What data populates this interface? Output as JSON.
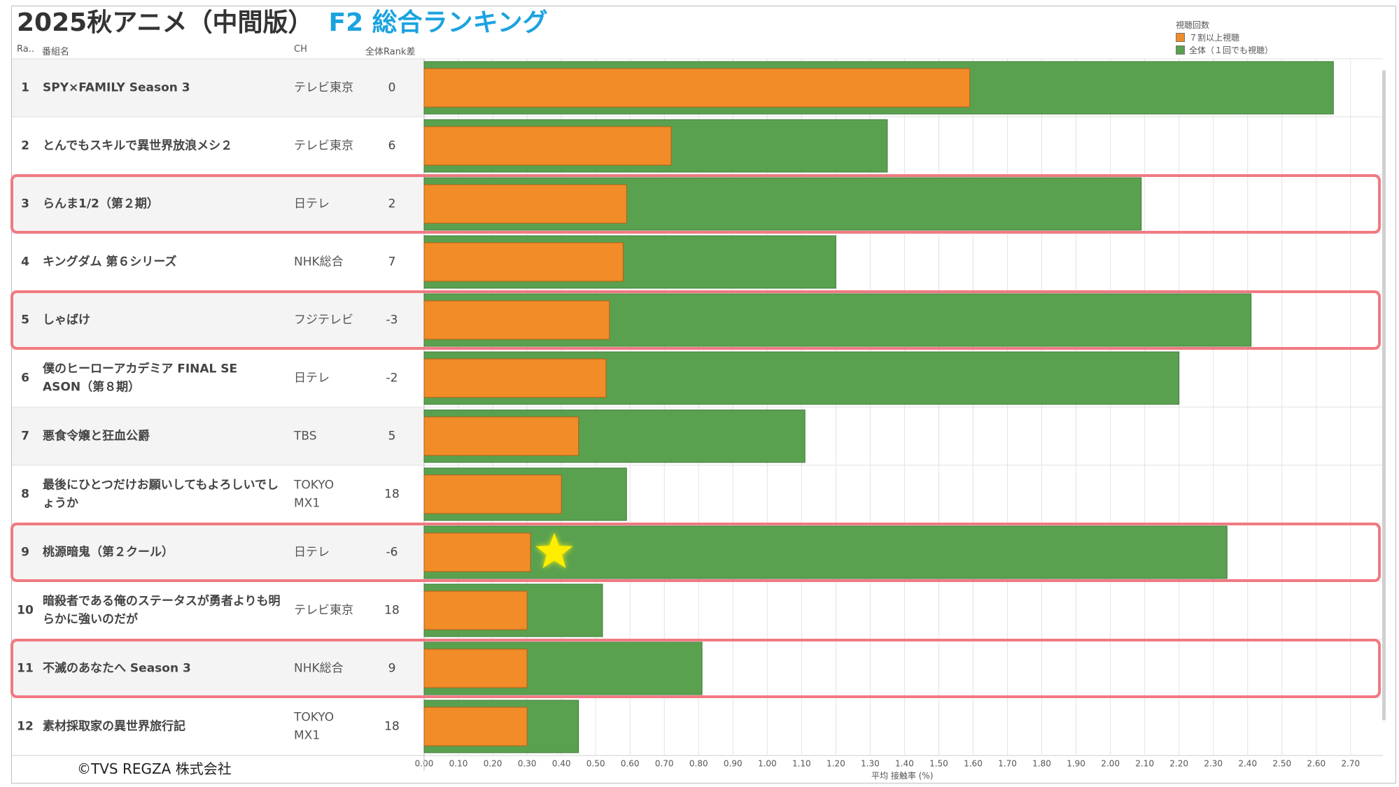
{
  "title": "2025秋アニメ（中間版）",
  "subtitle": "F2 総合ランキング",
  "header": {
    "rank": "Ra..",
    "program": "番組名",
    "ch": "CH",
    "rankdiff": "全体Rank差"
  },
  "legend": {
    "title": "視聴回数",
    "items": [
      {
        "label": "７割以上視聴",
        "color": "#f28c28"
      },
      {
        "label": "全体（１回でも視聴）",
        "color": "#59a14f"
      }
    ]
  },
  "copyright": "©TVS REGZA 株式会社",
  "colors": {
    "orange": "#f28c28",
    "green": "#59a14f",
    "highlight": "#f07a82",
    "star": "#ffee00"
  },
  "chart_data": {
    "type": "bar",
    "orientation": "horizontal",
    "xlabel": "平均 接触率 (%)",
    "xlim": [
      0,
      2.8
    ],
    "xticks": [
      "0.00",
      "0.10",
      "0.20",
      "0.30",
      "0.40",
      "0.50",
      "0.60",
      "0.70",
      "0.80",
      "0.90",
      "1.00",
      "1.10",
      "1.20",
      "1.30",
      "1.40",
      "1.50",
      "1.60",
      "1.70",
      "1.80",
      "1.90",
      "2.00",
      "2.10",
      "2.20",
      "2.30",
      "2.40",
      "2.50",
      "2.60",
      "2.70"
    ],
    "grid": true,
    "legend_position": "top-right",
    "highlighted_ranks": [
      3,
      5,
      9,
      11
    ],
    "star_rank": 9,
    "rows": [
      {
        "rank": "1",
        "program": [
          "SPY×FAMILY Season 3"
        ],
        "ch": [
          "テレビ東京"
        ],
        "rankdiff": "0",
        "over70": 1.59,
        "total": 2.65
      },
      {
        "rank": "2",
        "program": [
          "とんでもスキルで異世界放浪メシ２"
        ],
        "ch": [
          "テレビ東京"
        ],
        "rankdiff": "6",
        "over70": 0.72,
        "total": 1.35
      },
      {
        "rank": "3",
        "program": [
          "らんま1/2（第２期）"
        ],
        "ch": [
          "日テレ"
        ],
        "rankdiff": "2",
        "over70": 0.59,
        "total": 2.09
      },
      {
        "rank": "4",
        "program": [
          "キングダム 第６シリーズ"
        ],
        "ch": [
          "NHK総合"
        ],
        "rankdiff": "7",
        "over70": 0.58,
        "total": 1.2
      },
      {
        "rank": "5",
        "program": [
          "しゃばけ"
        ],
        "ch": [
          "フジテレビ"
        ],
        "rankdiff": "-3",
        "over70": 0.54,
        "total": 2.41
      },
      {
        "rank": "6",
        "program": [
          "僕のヒーローアカデミア FINAL SE",
          "ASON（第８期）"
        ],
        "ch": [
          "日テレ"
        ],
        "rankdiff": "-2",
        "over70": 0.53,
        "total": 2.2
      },
      {
        "rank": "7",
        "program": [
          "悪食令嬢と狂血公爵"
        ],
        "ch": [
          "TBS"
        ],
        "rankdiff": "5",
        "over70": 0.45,
        "total": 1.11
      },
      {
        "rank": "8",
        "program": [
          "最後にひとつだけお願いしてもよろしいでし",
          "ょうか"
        ],
        "ch": [
          "TOKYO",
          "MX1"
        ],
        "rankdiff": "18",
        "over70": 0.4,
        "total": 0.59
      },
      {
        "rank": "9",
        "program": [
          "桃源暗鬼（第２クール）"
        ],
        "ch": [
          "日テレ"
        ],
        "rankdiff": "-6",
        "over70": 0.31,
        "total": 2.34
      },
      {
        "rank": "10",
        "program": [
          "暗殺者である俺のステータスが勇者よりも明",
          "らかに強いのだが"
        ],
        "ch": [
          "テレビ東京"
        ],
        "rankdiff": "18",
        "over70": 0.3,
        "total": 0.52
      },
      {
        "rank": "11",
        "program": [
          "不滅のあなたへ Season 3"
        ],
        "ch": [
          "NHK総合"
        ],
        "rankdiff": "9",
        "over70": 0.3,
        "total": 0.81
      },
      {
        "rank": "12",
        "program": [
          "素材採取家の異世界旅行記"
        ],
        "ch": [
          "TOKYO",
          "MX1"
        ],
        "rankdiff": "18",
        "over70": 0.3,
        "total": 0.45
      }
    ]
  }
}
